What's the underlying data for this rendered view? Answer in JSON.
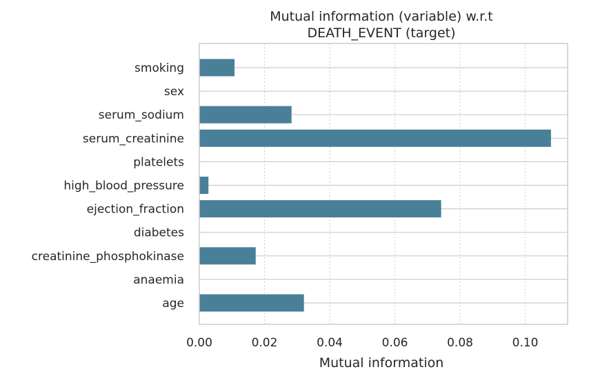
{
  "chart_data": {
    "type": "bar",
    "orientation": "horizontal",
    "title_lines": [
      "Mutual information (variable) w.r.t",
      "DEATH_EVENT (target)"
    ],
    "xlabel": "Mutual information",
    "ylabel": "",
    "xlim": [
      0.0,
      0.113
    ],
    "x_ticks": [
      "0.00",
      "0.02",
      "0.04",
      "0.06",
      "0.08",
      "0.10"
    ],
    "x_tick_values": [
      0.0,
      0.02,
      0.04,
      0.06,
      0.08,
      0.1
    ],
    "categories": [
      "smoking",
      "sex",
      "serum_sodium",
      "serum_creatinine",
      "platelets",
      "high_blood_pressure",
      "ejection_fraction",
      "diabetes",
      "creatinine_phosphokinase",
      "anaemia",
      "age"
    ],
    "values": [
      0.0108,
      0.0,
      0.0283,
      0.1079,
      0.0,
      0.0028,
      0.0742,
      0.0,
      0.0173,
      0.0,
      0.0321
    ],
    "bar_color": "#4a7f98",
    "grid": true,
    "legend": "none"
  }
}
